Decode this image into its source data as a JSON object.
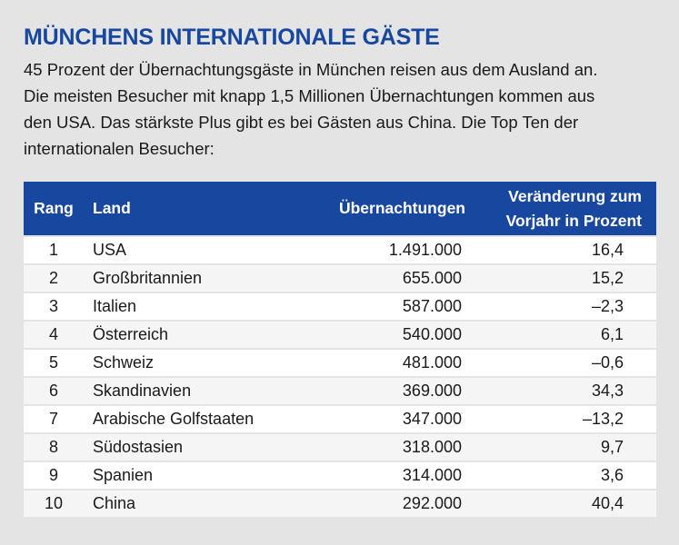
{
  "title": "MÜNCHENS INTERNATIONALE GÄSTE",
  "intro_lines": [
    "45 Prozent der Übernachtungsgäste in München reisen aus dem Ausland an.",
    "Die meisten Besucher mit knapp 1,5 Millionen Übernachtungen kommen aus",
    "den USA. Das stärkste Plus gibt es bei Gästen aus China. Die Top Ten der",
    "internationalen Besucher:"
  ],
  "table": {
    "headers": {
      "rank": "Rang",
      "land": "Land",
      "nights": "Übernachtungen",
      "change_line1": "Veränderung zum",
      "change_line2": "Vorjahr in Prozent"
    },
    "rows": [
      {
        "rank": "1",
        "land": "USA",
        "nights": "1.491.000",
        "change": "16,4"
      },
      {
        "rank": "2",
        "land": "Großbritannien",
        "nights": "655.000",
        "change": "15,2"
      },
      {
        "rank": "3",
        "land": "Italien",
        "nights": "587.000",
        "change": "–2,3"
      },
      {
        "rank": "4",
        "land": "Österreich",
        "nights": "540.000",
        "change": "6,1"
      },
      {
        "rank": "5",
        "land": "Schweiz",
        "nights": "481.000",
        "change": "–0,6"
      },
      {
        "rank": "6",
        "land": "Skandinavien",
        "nights": "369.000",
        "change": "34,3"
      },
      {
        "rank": "7",
        "land": "Arabische Golfstaaten",
        "nights": "347.000",
        "change": "–13,2"
      },
      {
        "rank": "8",
        "land": "Südostasien",
        "nights": "318.000",
        "change": "9,7"
      },
      {
        "rank": "9",
        "land": "Spanien",
        "nights": "314.000",
        "change": "3,6"
      },
      {
        "rank": "10",
        "land": "China",
        "nights": "292.000",
        "change": "40,4"
      }
    ]
  },
  "colors": {
    "accent": "#17479e",
    "background": "#e4e4e4",
    "row_light": "#ffffff",
    "row_alt": "#f5f5f5"
  }
}
